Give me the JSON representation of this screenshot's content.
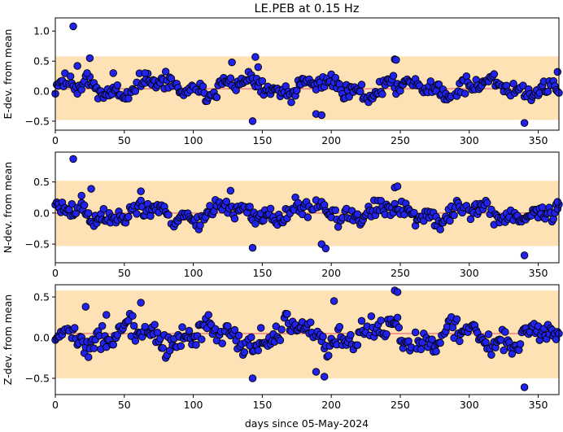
{
  "figure": {
    "title": "LE.PEB at 0.15 Hz",
    "xlabel": "days since 05-May-2024"
  },
  "colors": {
    "band": "#fee2b5",
    "mean_line": "#ef7f7f",
    "marker_fill": "#2222ee",
    "marker_edge": "#000000"
  },
  "chart_data": [
    {
      "type": "scatter",
      "ylabel": "E-dev. from mean",
      "xlim": [
        0,
        365
      ],
      "ylim": [
        -0.65,
        1.22
      ],
      "xticks": [
        0,
        50,
        100,
        150,
        200,
        250,
        300,
        350
      ],
      "yticks": [
        -0.5,
        0.0,
        0.5,
        1.0
      ],
      "ytick_labels": [
        "−0.5",
        "0.0",
        "0.5",
        "1.0"
      ],
      "band": [
        -0.48,
        0.58
      ],
      "mean_line": 0.04,
      "highlight_points": [
        [
          13,
          1.08
        ],
        [
          16,
          0.42
        ],
        [
          23,
          0.3
        ],
        [
          25,
          0.55
        ],
        [
          42,
          0.3
        ],
        [
          65,
          0.3
        ],
        [
          128,
          0.48
        ],
        [
          143,
          -0.5
        ],
        [
          145,
          0.57
        ],
        [
          147,
          0.4
        ],
        [
          189,
          -0.38
        ],
        [
          193,
          -0.4
        ],
        [
          246,
          0.53
        ],
        [
          247,
          0.52
        ],
        [
          340,
          -0.53
        ],
        [
          364,
          0.32
        ]
      ],
      "seed": 11,
      "noise_scale": 0.13,
      "trend": 0.06
    },
    {
      "type": "scatter",
      "ylabel": "N-dev. from mean",
      "xlim": [
        0,
        365
      ],
      "ylim": [
        -0.8,
        0.98
      ],
      "xticks": [
        0,
        50,
        100,
        150,
        200,
        250,
        300,
        350
      ],
      "yticks": [
        -0.5,
        0.0,
        0.5
      ],
      "ytick_labels": [
        "−0.5",
        "0.0",
        "0.5"
      ],
      "band": [
        -0.53,
        0.52
      ],
      "mean_line": 0.0,
      "highlight_points": [
        [
          13,
          0.87
        ],
        [
          19,
          0.28
        ],
        [
          26,
          0.39
        ],
        [
          62,
          0.35
        ],
        [
          127,
          0.36
        ],
        [
          143,
          -0.56
        ],
        [
          193,
          -0.5
        ],
        [
          196,
          -0.57
        ],
        [
          246,
          0.41
        ],
        [
          248,
          0.43
        ],
        [
          340,
          -0.68
        ],
        [
          364,
          0.18
        ]
      ],
      "seed": 23,
      "noise_scale": 0.14,
      "trend": 0.0
    },
    {
      "type": "scatter",
      "ylabel": "Z-dev. from mean",
      "xlim": [
        0,
        365
      ],
      "ylim": [
        -0.7,
        0.65
      ],
      "xticks": [
        0,
        50,
        100,
        150,
        200,
        250,
        300,
        350
      ],
      "yticks": [
        -0.5,
        0.0,
        0.5
      ],
      "ytick_labels": [
        "−0.5",
        "0.0",
        "0.5"
      ],
      "band": [
        -0.5,
        0.58
      ],
      "mean_line": 0.05,
      "highlight_points": [
        [
          22,
          0.38
        ],
        [
          37,
          0.28
        ],
        [
          62,
          0.43
        ],
        [
          143,
          -0.5
        ],
        [
          189,
          -0.42
        ],
        [
          195,
          -0.48
        ],
        [
          202,
          0.45
        ],
        [
          246,
          0.58
        ],
        [
          248,
          0.56
        ],
        [
          340,
          -0.61
        ],
        [
          366,
          0.29
        ]
      ],
      "seed": 37,
      "noise_scale": 0.14,
      "trend": 0.02
    }
  ]
}
